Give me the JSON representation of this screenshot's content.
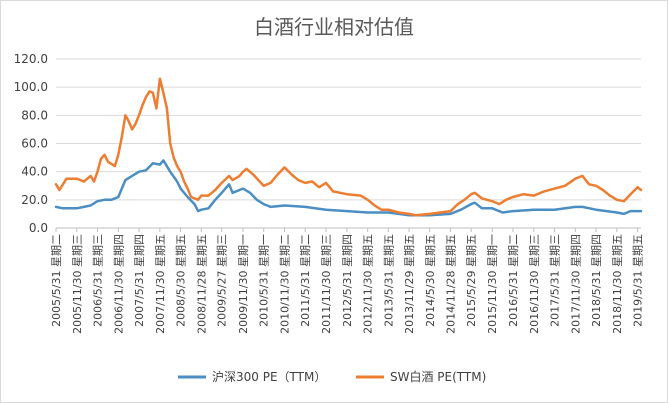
{
  "chart_data": {
    "type": "line",
    "title": "白酒行业相对估值",
    "xlabel": "",
    "ylabel": "",
    "ylim": [
      0,
      120
    ],
    "yticks": [
      "0.0",
      "20.0",
      "40.0",
      "60.0",
      "80.0",
      "100.0",
      "120.0"
    ],
    "ytick_values": [
      0,
      20,
      40,
      60,
      80,
      100,
      120
    ],
    "grid": true,
    "legend_position": "bottom",
    "x_range": [
      "2005-05-31",
      "2019-06-30"
    ],
    "x_tick_labels": [
      {
        "date": "2005-05-31",
        "label": "2005/5/31 星期二"
      },
      {
        "date": "2005-11-30",
        "label": "2005/11/30 星期三"
      },
      {
        "date": "2006-05-31",
        "label": "2006/5/31 星期三"
      },
      {
        "date": "2006-11-30",
        "label": "2006/11/30 星期四"
      },
      {
        "date": "2007-05-31",
        "label": "2007/5/31 星期四"
      },
      {
        "date": "2007-11-30",
        "label": "2007/11/30 星期五"
      },
      {
        "date": "2008-05-30",
        "label": "2008/5/30 星期五"
      },
      {
        "date": "2008-11-28",
        "label": "2008/11/28 星期五"
      },
      {
        "date": "2009-05-27",
        "label": "2009/5/27 星期三"
      },
      {
        "date": "2009-11-30",
        "label": "2009/11/30 星期一"
      },
      {
        "date": "2010-05-31",
        "label": "2010/5/31 星期一"
      },
      {
        "date": "2010-11-30",
        "label": "2010/11/30 星期二"
      },
      {
        "date": "2011-05-31",
        "label": "2011/5/31 星期二"
      },
      {
        "date": "2011-11-30",
        "label": "2011/11/30 星期三"
      },
      {
        "date": "2012-05-31",
        "label": "2012/5/31 星期四"
      },
      {
        "date": "2012-11-30",
        "label": "2012/11/30 星期五"
      },
      {
        "date": "2013-05-31",
        "label": "2013/5/31 星期五"
      },
      {
        "date": "2013-11-29",
        "label": "2013/11/29 星期五"
      },
      {
        "date": "2014-05-30",
        "label": "2014/5/30 星期五"
      },
      {
        "date": "2014-11-28",
        "label": "2014/11/28 星期五"
      },
      {
        "date": "2015-05-29",
        "label": "2015/5/29 星期五"
      },
      {
        "date": "2015-11-30",
        "label": "2015/11/30 星期一"
      },
      {
        "date": "2016-05-31",
        "label": "2016/5/31 星期二"
      },
      {
        "date": "2016-11-30",
        "label": "2016/11/30 星期三"
      },
      {
        "date": "2017-05-31",
        "label": "2017/5/31 星期三"
      },
      {
        "date": "2017-11-30",
        "label": "2017/11/30 星期四"
      },
      {
        "date": "2018-05-31",
        "label": "2018/5/31 星期四"
      },
      {
        "date": "2018-11-30",
        "label": "2018/11/30 星期五"
      },
      {
        "date": "2019-05-31",
        "label": "2019/5/31 星期五"
      }
    ],
    "series": [
      {
        "name": "沪深300 PE（TTM）",
        "color": "#4a8ec4",
        "points": [
          [
            "2005-05-31",
            15
          ],
          [
            "2005-07-31",
            14
          ],
          [
            "2005-09-30",
            14
          ],
          [
            "2005-11-30",
            14
          ],
          [
            "2006-01-31",
            15
          ],
          [
            "2006-03-31",
            16
          ],
          [
            "2006-05-31",
            19
          ],
          [
            "2006-07-31",
            20
          ],
          [
            "2006-09-30",
            20
          ],
          [
            "2006-11-30",
            22
          ],
          [
            "2007-01-31",
            34
          ],
          [
            "2007-03-31",
            37
          ],
          [
            "2007-05-31",
            40
          ],
          [
            "2007-07-31",
            41
          ],
          [
            "2007-09-30",
            46
          ],
          [
            "2007-11-30",
            45
          ],
          [
            "2007-12-31",
            48
          ],
          [
            "2008-02-29",
            40
          ],
          [
            "2008-04-30",
            33
          ],
          [
            "2008-05-30",
            28
          ],
          [
            "2008-07-31",
            22
          ],
          [
            "2008-09-30",
            17
          ],
          [
            "2008-10-31",
            12
          ],
          [
            "2008-11-28",
            13
          ],
          [
            "2009-01-31",
            14
          ],
          [
            "2009-03-31",
            20
          ],
          [
            "2009-05-27",
            25
          ],
          [
            "2009-07-31",
            31
          ],
          [
            "2009-08-31",
            25
          ],
          [
            "2009-11-30",
            28
          ],
          [
            "2010-01-31",
            25
          ],
          [
            "2010-03-31",
            20
          ],
          [
            "2010-05-31",
            17
          ],
          [
            "2010-07-31",
            15
          ],
          [
            "2010-11-30",
            16
          ],
          [
            "2011-05-31",
            15
          ],
          [
            "2011-11-30",
            13
          ],
          [
            "2012-05-31",
            12
          ],
          [
            "2012-11-30",
            11
          ],
          [
            "2013-05-31",
            11
          ],
          [
            "2013-11-29",
            9
          ],
          [
            "2014-05-30",
            9
          ],
          [
            "2014-11-28",
            10
          ],
          [
            "2015-02-28",
            13
          ],
          [
            "2015-05-29",
            17
          ],
          [
            "2015-06-30",
            18
          ],
          [
            "2015-08-31",
            14
          ],
          [
            "2015-11-30",
            14
          ],
          [
            "2016-02-29",
            11
          ],
          [
            "2016-05-31",
            12
          ],
          [
            "2016-11-30",
            13
          ],
          [
            "2017-05-31",
            13
          ],
          [
            "2017-11-30",
            15
          ],
          [
            "2018-01-31",
            15
          ],
          [
            "2018-05-31",
            13
          ],
          [
            "2018-11-30",
            11
          ],
          [
            "2019-01-31",
            10
          ],
          [
            "2019-03-31",
            12
          ],
          [
            "2019-05-31",
            12
          ],
          [
            "2019-06-30",
            12
          ]
        ]
      },
      {
        "name": "SW白酒 PE(TTM)",
        "color": "#ed7d31",
        "points": [
          [
            "2005-05-31",
            31
          ],
          [
            "2005-06-30",
            27
          ],
          [
            "2005-08-31",
            35
          ],
          [
            "2005-11-30",
            35
          ],
          [
            "2006-01-31",
            33
          ],
          [
            "2006-03-31",
            37
          ],
          [
            "2006-04-30",
            33
          ],
          [
            "2006-05-31",
            40
          ],
          [
            "2006-06-30",
            49
          ],
          [
            "2006-07-31",
            52
          ],
          [
            "2006-08-31",
            47
          ],
          [
            "2006-10-31",
            44
          ],
          [
            "2006-11-30",
            52
          ],
          [
            "2006-12-31",
            65
          ],
          [
            "2007-01-31",
            80
          ],
          [
            "2007-02-28",
            76
          ],
          [
            "2007-03-31",
            70
          ],
          [
            "2007-04-30",
            74
          ],
          [
            "2007-05-31",
            80
          ],
          [
            "2007-06-30",
            87
          ],
          [
            "2007-07-31",
            93
          ],
          [
            "2007-08-31",
            97
          ],
          [
            "2007-09-30",
            96
          ],
          [
            "2007-10-31",
            85
          ],
          [
            "2007-11-30",
            106
          ],
          [
            "2007-12-31",
            96
          ],
          [
            "2008-01-31",
            85
          ],
          [
            "2008-02-29",
            60
          ],
          [
            "2008-03-31",
            50
          ],
          [
            "2008-04-30",
            44
          ],
          [
            "2008-05-30",
            40
          ],
          [
            "2008-06-30",
            33
          ],
          [
            "2008-07-31",
            28
          ],
          [
            "2008-08-31",
            22
          ],
          [
            "2008-10-31",
            20
          ],
          [
            "2008-11-28",
            23
          ],
          [
            "2009-01-31",
            23
          ],
          [
            "2009-03-31",
            27
          ],
          [
            "2009-05-27",
            32
          ],
          [
            "2009-07-31",
            37
          ],
          [
            "2009-08-31",
            34
          ],
          [
            "2009-10-31",
            37
          ],
          [
            "2009-11-30",
            40
          ],
          [
            "2009-12-31",
            42
          ],
          [
            "2010-02-28",
            38
          ],
          [
            "2010-05-31",
            30
          ],
          [
            "2010-07-31",
            32
          ],
          [
            "2010-09-30",
            38
          ],
          [
            "2010-11-30",
            43
          ],
          [
            "2011-01-31",
            38
          ],
          [
            "2011-03-31",
            34
          ],
          [
            "2011-05-31",
            32
          ],
          [
            "2011-07-31",
            33
          ],
          [
            "2011-09-30",
            29
          ],
          [
            "2011-11-30",
            32
          ],
          [
            "2012-01-31",
            26
          ],
          [
            "2012-05-31",
            24
          ],
          [
            "2012-09-30",
            23
          ],
          [
            "2012-11-30",
            20
          ],
          [
            "2013-01-31",
            16
          ],
          [
            "2013-03-31",
            13
          ],
          [
            "2013-05-31",
            13
          ],
          [
            "2013-08-31",
            11
          ],
          [
            "2013-11-29",
            10
          ],
          [
            "2014-01-31",
            9
          ],
          [
            "2014-05-30",
            10
          ],
          [
            "2014-08-31",
            11
          ],
          [
            "2014-11-28",
            12
          ],
          [
            "2015-01-31",
            17
          ],
          [
            "2015-03-31",
            20
          ],
          [
            "2015-05-29",
            24
          ],
          [
            "2015-06-30",
            25
          ],
          [
            "2015-08-31",
            21
          ],
          [
            "2015-11-30",
            19
          ],
          [
            "2016-01-31",
            17
          ],
          [
            "2016-03-31",
            20
          ],
          [
            "2016-05-31",
            22
          ],
          [
            "2016-08-31",
            24
          ],
          [
            "2016-11-30",
            23
          ],
          [
            "2017-02-28",
            26
          ],
          [
            "2017-05-31",
            28
          ],
          [
            "2017-08-31",
            30
          ],
          [
            "2017-11-30",
            35
          ],
          [
            "2018-01-31",
            37
          ],
          [
            "2018-03-31",
            31
          ],
          [
            "2018-05-31",
            30
          ],
          [
            "2018-07-31",
            27
          ],
          [
            "2018-09-30",
            23
          ],
          [
            "2018-11-30",
            20
          ],
          [
            "2019-01-31",
            19
          ],
          [
            "2019-03-31",
            24
          ],
          [
            "2019-05-31",
            29
          ],
          [
            "2019-06-30",
            27
          ]
        ]
      }
    ]
  }
}
